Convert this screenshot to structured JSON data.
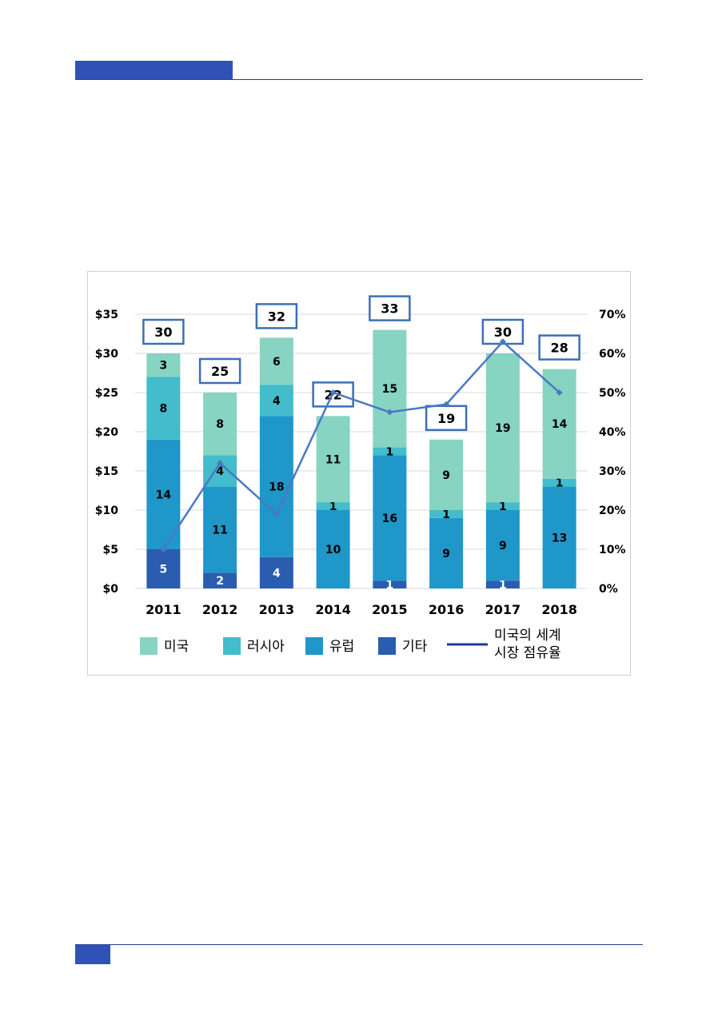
{
  "chart_data": {
    "type": "bar",
    "stacked": true,
    "categories": [
      "2011",
      "2012",
      "2013",
      "2014",
      "2015",
      "2016",
      "2017",
      "2018"
    ],
    "series": [
      {
        "name": "기타",
        "color": "#2a5db0",
        "values": [
          5,
          2,
          4,
          0,
          1,
          0,
          1,
          0
        ]
      },
      {
        "name": "유럽",
        "color": "#1f97c9",
        "values": [
          14,
          11,
          18,
          10,
          16,
          9,
          9,
          13
        ]
      },
      {
        "name": "러시아",
        "color": "#43bccb",
        "values": [
          8,
          4,
          4,
          1,
          1,
          1,
          1,
          1
        ]
      },
      {
        "name": "미국",
        "color": "#86d4c1",
        "values": [
          3,
          8,
          6,
          11,
          15,
          9,
          19,
          14
        ]
      }
    ],
    "totals": [
      30,
      25,
      32,
      22,
      33,
      19,
      30,
      28
    ],
    "line_series": {
      "name": "미국의 세계\n시장 점유율",
      "legend_line1": "미국의 세계",
      "legend_line2": "시장 점유율",
      "color": "#4a78c4",
      "axis": "secondary",
      "values": [
        10,
        32,
        19,
        50,
        45,
        47,
        63,
        50
      ]
    },
    "y_left_ticks": [
      "$0",
      "$5",
      "$10",
      "$15",
      "$20",
      "$25",
      "$30",
      "$35"
    ],
    "y_right_ticks": [
      "0%",
      "10%",
      "20%",
      "30%",
      "40%",
      "50%",
      "60%",
      "70%"
    ],
    "ylim": [
      0,
      35
    ],
    "y2lim": [
      0,
      70
    ],
    "grid": true,
    "legend_position": "bottom",
    "total_box_color": "#3d6fb5"
  }
}
